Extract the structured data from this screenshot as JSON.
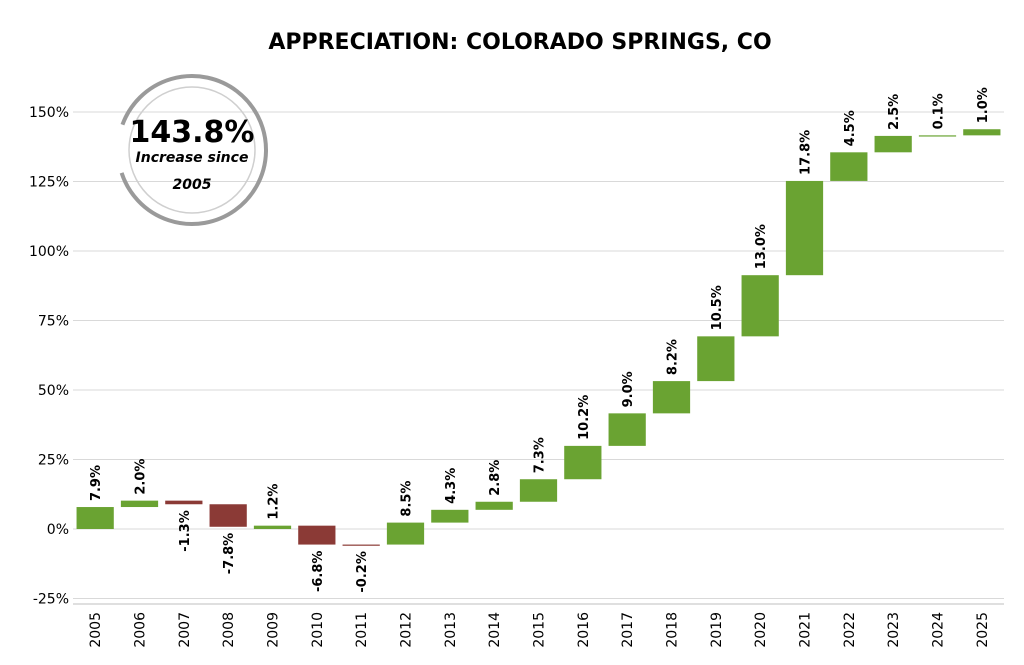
{
  "chart_data": {
    "type": "bar",
    "subtype": "waterfall",
    "title": "APPRECIATION:  COLORADO SPRINGS, CO",
    "xlabel": "",
    "ylabel": "",
    "ylim": [
      -25,
      160
    ],
    "yticks": [
      "-25%",
      "0%",
      "25%",
      "50%",
      "75%",
      "100%",
      "125%",
      "150%"
    ],
    "ytick_values": [
      -25,
      0,
      25,
      50,
      75,
      100,
      125,
      150
    ],
    "categories": [
      "2005",
      "2006",
      "2007",
      "2008",
      "2009",
      "2010",
      "2011",
      "2012",
      "2013",
      "2014",
      "2015",
      "2016",
      "2017",
      "2018",
      "2019",
      "2020",
      "2021",
      "2022",
      "2023",
      "2024",
      "2025"
    ],
    "values": [
      7.9,
      2.0,
      -1.3,
      -7.8,
      1.2,
      -6.8,
      -0.2,
      8.5,
      4.3,
      2.8,
      7.3,
      10.2,
      9.0,
      8.2,
      10.5,
      13.0,
      17.8,
      4.5,
      2.5,
      0.1,
      1.0
    ],
    "labels": [
      "7.9%",
      "2.0%",
      "-1.3%",
      "-7.8%",
      "1.2%",
      "-6.8%",
      "-0.2%",
      "8.5%",
      "4.3%",
      "2.8%",
      "7.3%",
      "10.2%",
      "9.0%",
      "8.2%",
      "10.5%",
      "13.0%",
      "17.8%",
      "4.5%",
      "2.5%",
      "0.1%",
      "1.0%"
    ],
    "bar_bounds": [
      [
        0.0,
        7.9
      ],
      [
        7.9,
        10.2
      ],
      [
        8.9,
        10.2
      ],
      [
        0.8,
        8.9
      ],
      [
        0.0,
        1.2
      ],
      [
        -5.6,
        1.2
      ],
      [
        -5.8,
        -5.6
      ],
      [
        -5.6,
        2.3
      ],
      [
        2.3,
        6.9
      ],
      [
        6.9,
        9.8
      ],
      [
        9.8,
        17.9
      ],
      [
        17.9,
        29.9
      ],
      [
        29.9,
        41.6
      ],
      [
        41.6,
        53.2
      ],
      [
        53.2,
        69.3
      ],
      [
        69.3,
        91.3
      ],
      [
        91.3,
        125.2
      ],
      [
        125.2,
        135.5
      ],
      [
        135.5,
        141.4
      ],
      [
        141.4,
        141.6
      ],
      [
        141.6,
        143.8
      ]
    ],
    "grid": true,
    "colors": {
      "increase": "#6aa332",
      "decrease": "#8b3a36"
    },
    "callout": {
      "value": "143.8%",
      "line1": "Increase since",
      "line2": "2005"
    }
  }
}
